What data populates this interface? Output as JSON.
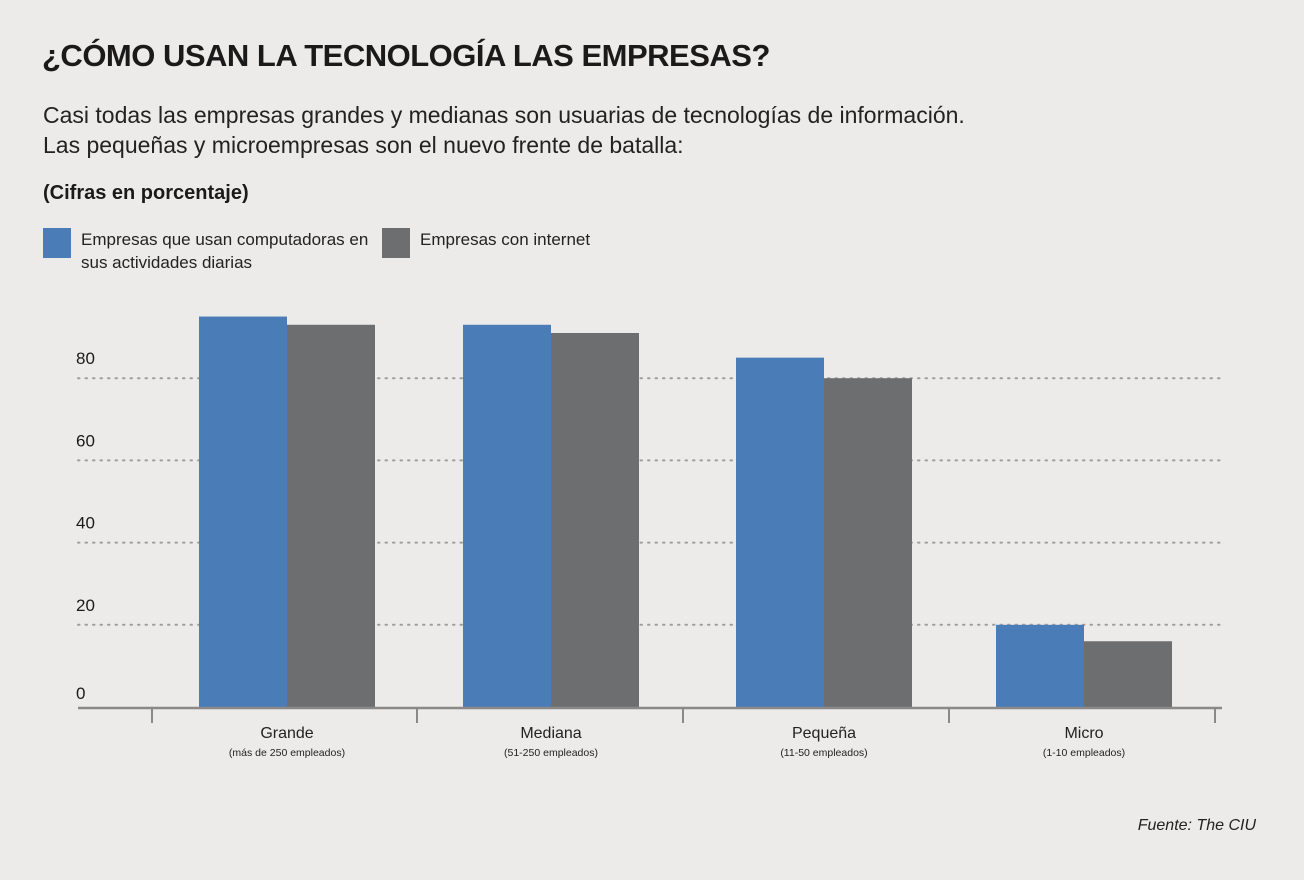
{
  "title": "¿CÓMO USAN LA TECNOLOGÍA LAS EMPRESAS?",
  "subtitle_lines": [
    "Casi todas las empresas grandes y medianas son usuarias de tecnologías de información.",
    "Las pequeñas y microempresas son el nuevo frente de batalla:"
  ],
  "units": "(Cifras en porcentaje)",
  "source": "Fuente: The CIU",
  "chart_data": {
    "type": "bar",
    "title": "¿CÓMO USAN LA TECNOLOGÍA LAS EMPRESAS?",
    "ylabel": "(Cifras en porcentaje)",
    "xlabel": "",
    "ylim": [
      0,
      100
    ],
    "yticks": [
      0,
      20,
      40,
      60,
      80
    ],
    "grid": true,
    "legend_position": "top-left",
    "categories": [
      "Grande",
      "Mediana",
      "Pequeña",
      "Micro"
    ],
    "category_sublabels": [
      "(más de 250 empleados)",
      "(51-250 empleados)",
      "(11-50 empleados)",
      "(1-10 empleados)"
    ],
    "series": [
      {
        "name": "Empresas que usan computadoras en sus actividades diarias",
        "color": "#4a7db8",
        "values": [
          95,
          93,
          85,
          20
        ]
      },
      {
        "name": "Empresas con internet",
        "color": "#6d6e70",
        "values": [
          93,
          91,
          80,
          16
        ]
      }
    ]
  }
}
